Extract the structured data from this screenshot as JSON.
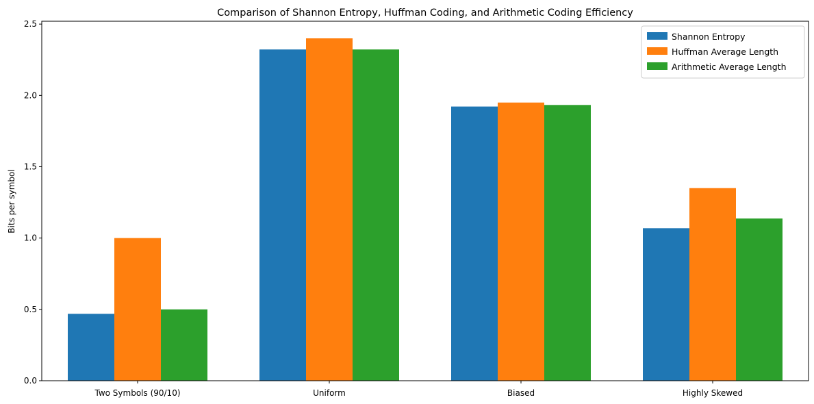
{
  "chart_data": {
    "type": "bar",
    "title": "Comparison of Shannon Entropy, Huffman Coding, and Arithmetic Coding Efficiency",
    "xlabel": "",
    "ylabel": "Bits per symbol",
    "categories": [
      "Two Symbols (90/10)",
      "Uniform",
      "Biased",
      "Highly Skewed"
    ],
    "series": [
      {
        "name": "Shannon Entropy",
        "color": "#1f77b4",
        "values": [
          0.469,
          2.322,
          1.922,
          1.069
        ]
      },
      {
        "name": "Huffman Average Length",
        "color": "#ff7f0e",
        "values": [
          1.0,
          2.4,
          1.95,
          1.35
        ]
      },
      {
        "name": "Arithmetic Average Length",
        "color": "#2ca02c",
        "values": [
          0.5,
          2.322,
          1.933,
          1.137
        ]
      }
    ],
    "ylim": [
      0,
      2.52
    ],
    "yticks": [
      "0.0",
      "0.5",
      "1.0",
      "1.5",
      "2.0",
      "2.5"
    ],
    "grid": false,
    "legend_position": "top-right"
  }
}
